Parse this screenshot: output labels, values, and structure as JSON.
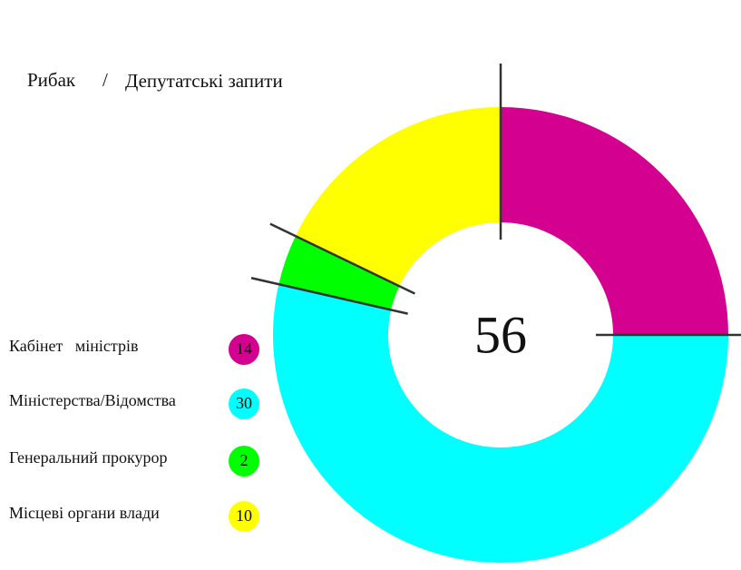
{
  "chart_data": {
    "type": "pie",
    "breadcrumb": [
      "Рибак",
      "Депутатські запити"
    ],
    "separator": "/",
    "categories": [
      "Кабінет   міністрів",
      "Міністерства/Відомства",
      "Генеральний прокурор",
      "Місцеві органи влади"
    ],
    "values": [
      14,
      30,
      2,
      10
    ],
    "colors": [
      "#d4008f",
      "#00ffff",
      "#00ff00",
      "#ffff00"
    ],
    "total": 56
  }
}
